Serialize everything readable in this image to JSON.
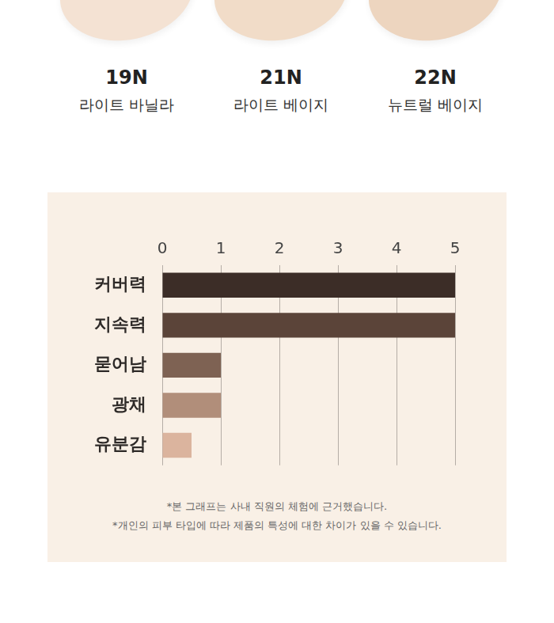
{
  "swatches": [
    {
      "shade": "19N",
      "name": "라이트 바닐라",
      "color": "#f4e2d3"
    },
    {
      "shade": "21N",
      "name": "라이트 베이지",
      "color": "#f1dcc8"
    },
    {
      "shade": "22N",
      "name": "뉴트럴 베이지",
      "color": "#edd5bf"
    }
  ],
  "chart_data": {
    "type": "bar",
    "orientation": "horizontal",
    "categories": [
      "커버력",
      "지속력",
      "묻어남",
      "광채",
      "유분감"
    ],
    "values": [
      5,
      5,
      1,
      1,
      0.5
    ],
    "colors": [
      "#3c2d27",
      "#5b4439",
      "#7e6253",
      "#b18e7a",
      "#dbb49e"
    ],
    "xlim": [
      0,
      5
    ],
    "xticks": [
      0,
      1,
      2,
      3,
      4,
      5
    ],
    "grid": true,
    "annotations": [
      "*본 그래프는 사내 직원의 체험에 근거했습니다.",
      "*개인의 피부 타입에 따라 제품의 특성에 대한 차이가 있을 수 있습니다."
    ]
  }
}
